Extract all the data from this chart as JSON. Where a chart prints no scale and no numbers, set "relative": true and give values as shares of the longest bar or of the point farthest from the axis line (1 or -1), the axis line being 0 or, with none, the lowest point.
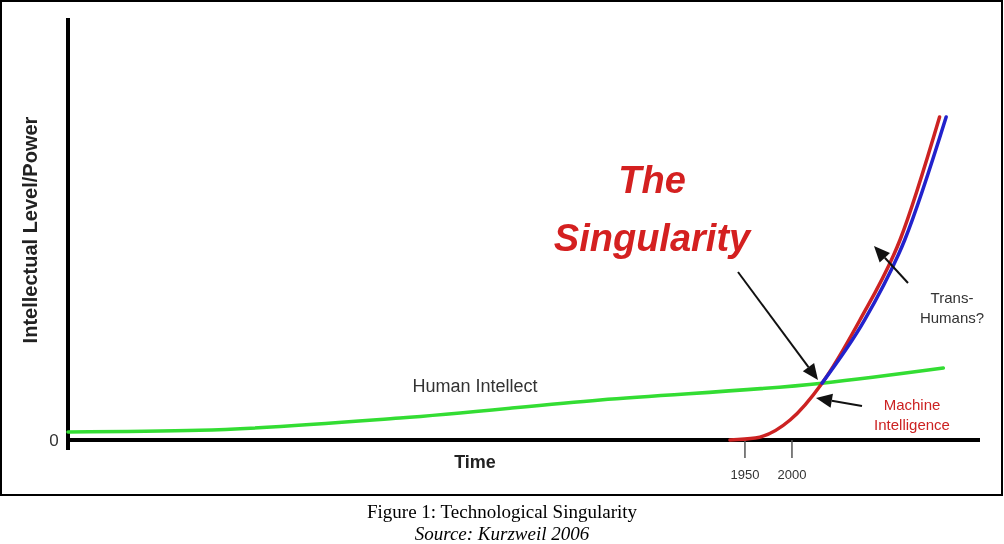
{
  "chart_data": {
    "type": "line",
    "relative": true,
    "xlabel": "Time",
    "ylabel": "Intellectual Level/Power",
    "xlim": [
      1230,
      2200
    ],
    "xticks": [
      1950,
      2000
    ],
    "series": [
      {
        "name": "Human Intellect",
        "color": "#33dd33",
        "x": [
          1230,
          1370,
          1583,
          1796,
          2032,
          2161
        ],
        "values": [
          0.025,
          0.03,
          0.068,
          0.124,
          0.176,
          0.223
        ]
      },
      {
        "name": "Machine Intelligence",
        "color": "#cc2222",
        "x": [
          1934,
          1961,
          1998,
          2032,
          2072,
          2115,
          2157
        ],
        "values": [
          0,
          0.006,
          0.062,
          0.176,
          0.37,
          0.62,
          1.0
        ]
      },
      {
        "name": "Trans-Humans?",
        "color": "#2222cc",
        "x": [
          2032,
          2077,
          2120,
          2164
        ],
        "values": [
          0.176,
          0.37,
          0.62,
          1.0
        ]
      }
    ],
    "annotations": [
      "The Singularity",
      "0",
      "Figure 1: Technological Singularity",
      "Source: Kurzweil 2006"
    ]
  }
}
